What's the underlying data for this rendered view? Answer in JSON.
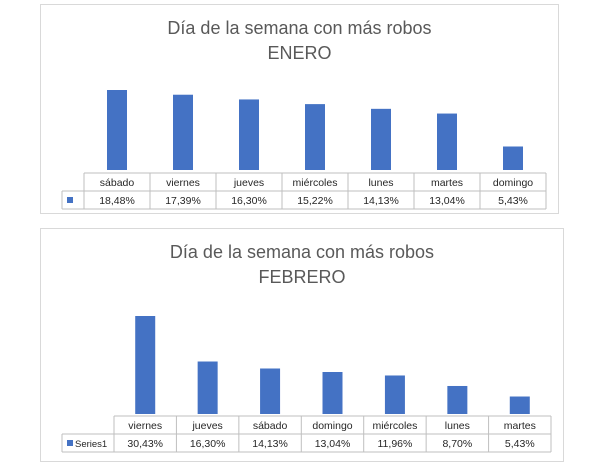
{
  "chart_data": [
    {
      "type": "bar",
      "title": "Día de la semana con más robos",
      "subtitle": "ENERO",
      "categories": [
        "sábado",
        "viernes",
        "jueves",
        "miércoles",
        "lunes",
        "martes",
        "domingo"
      ],
      "series": [
        {
          "name": "",
          "values": [
            18.48,
            17.39,
            16.3,
            15.22,
            14.13,
            13.04,
            5.43
          ]
        }
      ],
      "value_labels": [
        "18,48%",
        "17,39%",
        "16,30%",
        "15,22%",
        "14,13%",
        "13,04%",
        "5,43%"
      ],
      "legend": "data-table",
      "grid": false,
      "color": "#4472C4"
    },
    {
      "type": "bar",
      "title": "Día de la semana con más robos",
      "subtitle": "FEBRERO",
      "categories": [
        "viernes",
        "jueves",
        "sábado",
        "domingo",
        "miércoles",
        "lunes",
        "martes"
      ],
      "series": [
        {
          "name": "Series1",
          "values": [
            30.43,
            16.3,
            14.13,
            13.04,
            11.96,
            8.7,
            5.43
          ]
        }
      ],
      "value_labels": [
        "30,43%",
        "16,30%",
        "14,13%",
        "13,04%",
        "11,96%",
        "8,70%",
        "5,43%"
      ],
      "legend": "data-table",
      "grid": false,
      "color": "#4472C4"
    }
  ]
}
